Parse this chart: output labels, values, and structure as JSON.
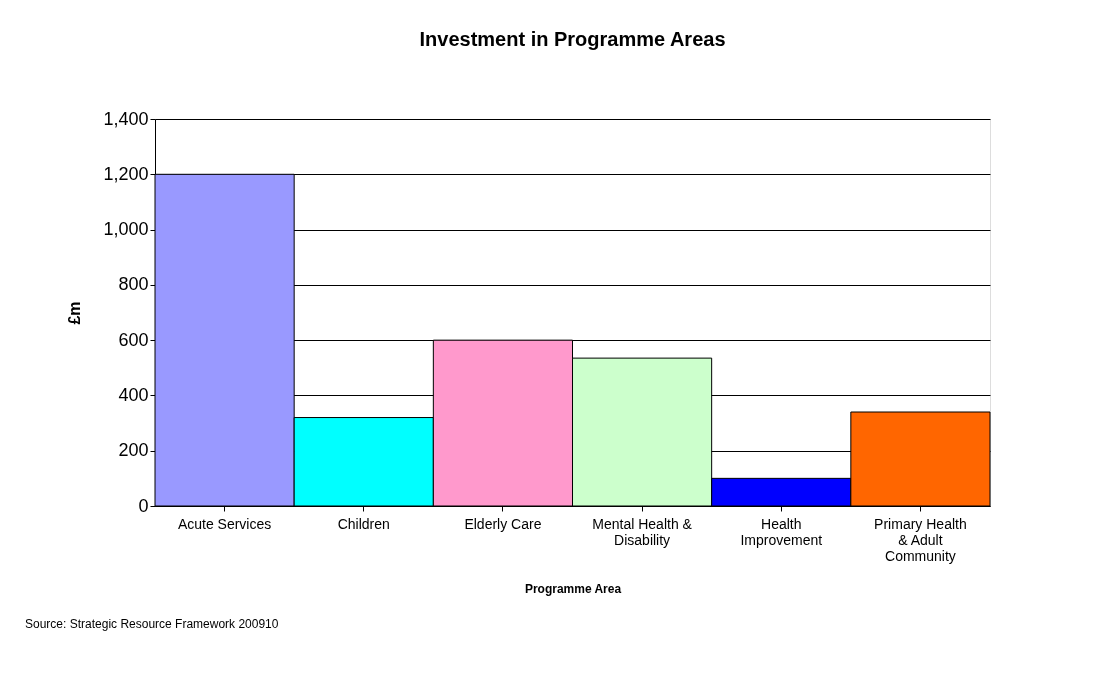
{
  "chart_data": {
    "type": "bar",
    "title": "Investment in Programme Areas",
    "xlabel": "Programme Area",
    "ylabel": "£m",
    "categories": [
      "Acute Services",
      "Children",
      "Elderly Care",
      "Mental Health & Disability",
      "Health Improvement",
      "Primary Health & Adult Community"
    ],
    "values": [
      1200,
      320,
      600,
      535,
      100,
      340
    ],
    "colors": [
      "#9999ff",
      "#00ffff",
      "#ff99cc",
      "#ccffcc",
      "#0000ff",
      "#ff6600"
    ],
    "ylim": [
      0,
      1400
    ],
    "yticks": [
      0,
      200,
      400,
      600,
      800,
      {
        "value": 1000,
        "label": "1,000"
      },
      {
        "value": 1200,
        "label": "1,200"
      },
      {
        "value": 1400,
        "label": "1,400"
      }
    ],
    "grid": "y",
    "annotations": [
      "Source: Strategic Resource Framework 200910"
    ]
  }
}
